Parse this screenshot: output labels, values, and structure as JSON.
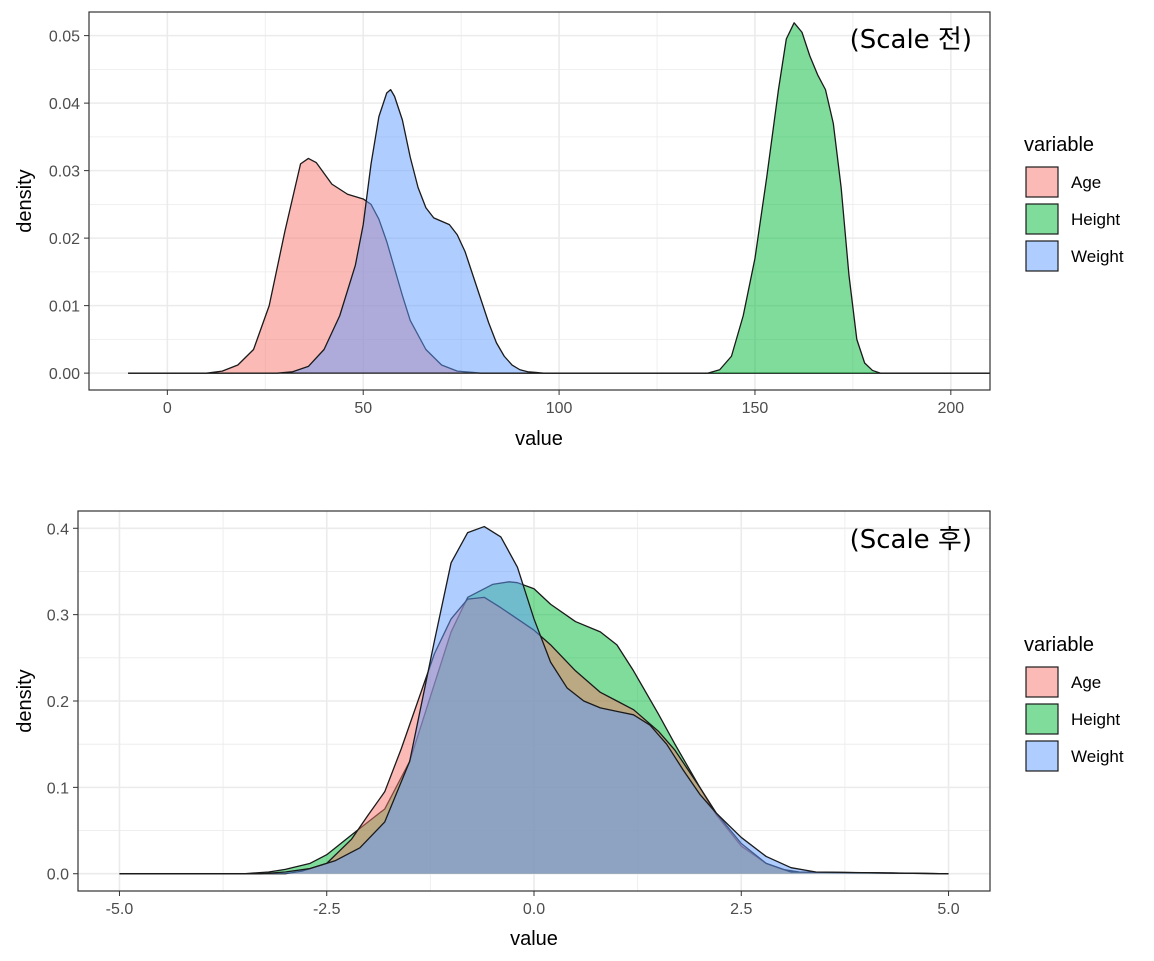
{
  "colors": {
    "Age": "#F8766D",
    "Height": "#00BA38",
    "Weight": "#619CFF",
    "fill_alpha": 0.5,
    "grid": "#ebebeb",
    "panel_border": "#333333"
  },
  "chart_data": [
    {
      "type": "area",
      "subtype": "density",
      "annotation": "(Scale 전)",
      "xlabel": "value",
      "ylabel": "density",
      "xlim": [
        -20,
        210
      ],
      "ylim": [
        -0.0025,
        0.0535
      ],
      "xticks": [
        0,
        50,
        100,
        150,
        200
      ],
      "xtick_labels": [
        "0",
        "50",
        "100",
        "150",
        "200"
      ],
      "yticks": [
        0,
        0.01,
        0.02,
        0.03,
        0.04,
        0.05
      ],
      "ytick_labels": [
        "0.00",
        "0.01",
        "0.02",
        "0.03",
        "0.04",
        "0.05"
      ],
      "legend_title": "variable",
      "series": [
        {
          "name": "Age",
          "x": [
            -10,
            10,
            14,
            18,
            22,
            26,
            30,
            34,
            36,
            38,
            42,
            46,
            50,
            52,
            54,
            56,
            58,
            60,
            62,
            66,
            70,
            74,
            78,
            80,
            210
          ],
          "y": [
            0,
            0,
            0.0003,
            0.0012,
            0.0035,
            0.01,
            0.021,
            0.031,
            0.0318,
            0.0312,
            0.028,
            0.0265,
            0.0258,
            0.025,
            0.0228,
            0.0195,
            0.0155,
            0.0115,
            0.0078,
            0.0035,
            0.0012,
            0.0003,
            0.0001,
            0,
            0
          ]
        },
        {
          "name": "Weight",
          "x": [
            -10,
            28,
            32,
            36,
            40,
            44,
            48,
            50,
            52,
            54,
            56,
            57,
            58,
            60,
            62,
            64,
            66,
            68,
            70,
            72,
            74,
            76,
            78,
            80,
            82,
            84,
            86,
            88,
            90,
            92,
            94,
            96,
            210
          ],
          "y": [
            0,
            0,
            0.0002,
            0.001,
            0.0035,
            0.0085,
            0.016,
            0.022,
            0.031,
            0.038,
            0.0415,
            0.042,
            0.041,
            0.0375,
            0.032,
            0.0275,
            0.0245,
            0.023,
            0.0225,
            0.022,
            0.0205,
            0.018,
            0.0145,
            0.011,
            0.0075,
            0.0045,
            0.0025,
            0.0012,
            0.0005,
            0.0002,
            0.0001,
            0,
            0
          ]
        },
        {
          "name": "Height",
          "x": [
            -10,
            138,
            141,
            144,
            147,
            150,
            153,
            156,
            158,
            160,
            162,
            164,
            166,
            168,
            170,
            172,
            174,
            176,
            178,
            180,
            182,
            210
          ],
          "y": [
            0,
            0,
            0.0005,
            0.0025,
            0.0085,
            0.017,
            0.029,
            0.042,
            0.0495,
            0.0519,
            0.0505,
            0.047,
            0.0442,
            0.042,
            0.037,
            0.0275,
            0.0145,
            0.005,
            0.0015,
            0.0004,
            0,
            0
          ]
        }
      ]
    },
    {
      "type": "area",
      "subtype": "density",
      "annotation": "(Scale 후)",
      "xlabel": "value",
      "ylabel": "density",
      "xlim": [
        -5.5,
        5.5
      ],
      "ylim": [
        -0.02,
        0.42
      ],
      "xticks": [
        -5,
        -2.5,
        0,
        2.5,
        5
      ],
      "xtick_labels": [
        "-5.0",
        "-2.5",
        "0.0",
        "2.5",
        "5.0"
      ],
      "yticks": [
        0,
        0.1,
        0.2,
        0.3,
        0.4
      ],
      "ytick_labels": [
        "0.0",
        "0.1",
        "0.2",
        "0.3",
        "0.4"
      ],
      "legend_title": "variable",
      "series": [
        {
          "name": "Height",
          "x": [
            -5,
            -3.5,
            -3.2,
            -3.0,
            -2.7,
            -2.5,
            -2.2,
            -2.0,
            -1.8,
            -1.5,
            -1.2,
            -1.0,
            -0.8,
            -0.5,
            -0.3,
            -0.2,
            0,
            0.2,
            0.5,
            0.8,
            1.0,
            1.2,
            1.5,
            1.7,
            2.0,
            2.2,
            2.5,
            2.8,
            3.0,
            3.2,
            5
          ],
          "y": [
            0,
            0,
            0.002,
            0.005,
            0.012,
            0.022,
            0.045,
            0.06,
            0.075,
            0.13,
            0.22,
            0.28,
            0.32,
            0.335,
            0.338,
            0.337,
            0.33,
            0.312,
            0.292,
            0.28,
            0.265,
            0.235,
            0.185,
            0.15,
            0.1,
            0.068,
            0.032,
            0.012,
            0.005,
            0.002,
            0
          ]
        },
        {
          "name": "Age",
          "x": [
            -5,
            -3.0,
            -2.8,
            -2.5,
            -2.2,
            -2.0,
            -1.8,
            -1.6,
            -1.4,
            -1.2,
            -1.0,
            -0.8,
            -0.6,
            -0.4,
            -0.2,
            0,
            0.2,
            0.5,
            0.8,
            1.0,
            1.2,
            1.5,
            1.7,
            2.0,
            2.2,
            2.5,
            2.8,
            3.1,
            5
          ],
          "y": [
            0,
            0,
            0.003,
            0.012,
            0.04,
            0.068,
            0.095,
            0.145,
            0.2,
            0.255,
            0.295,
            0.318,
            0.32,
            0.308,
            0.295,
            0.282,
            0.265,
            0.235,
            0.21,
            0.2,
            0.19,
            0.165,
            0.143,
            0.1,
            0.07,
            0.035,
            0.012,
            0.002,
            0
          ]
        },
        {
          "name": "Weight",
          "x": [
            -5,
            -3.3,
            -3.0,
            -2.7,
            -2.4,
            -2.1,
            -1.8,
            -1.5,
            -1.2,
            -1.0,
            -0.8,
            -0.6,
            -0.4,
            -0.2,
            0,
            0.2,
            0.4,
            0.6,
            0.8,
            1.0,
            1.2,
            1.4,
            1.6,
            1.8,
            2.0,
            2.2,
            2.5,
            2.8,
            3.1,
            3.4,
            5
          ],
          "y": [
            0,
            0,
            0.002,
            0.006,
            0.015,
            0.03,
            0.06,
            0.13,
            0.27,
            0.36,
            0.395,
            0.402,
            0.39,
            0.355,
            0.295,
            0.245,
            0.215,
            0.2,
            0.192,
            0.188,
            0.184,
            0.172,
            0.15,
            0.12,
            0.092,
            0.07,
            0.042,
            0.02,
            0.007,
            0.002,
            0
          ]
        }
      ]
    }
  ]
}
